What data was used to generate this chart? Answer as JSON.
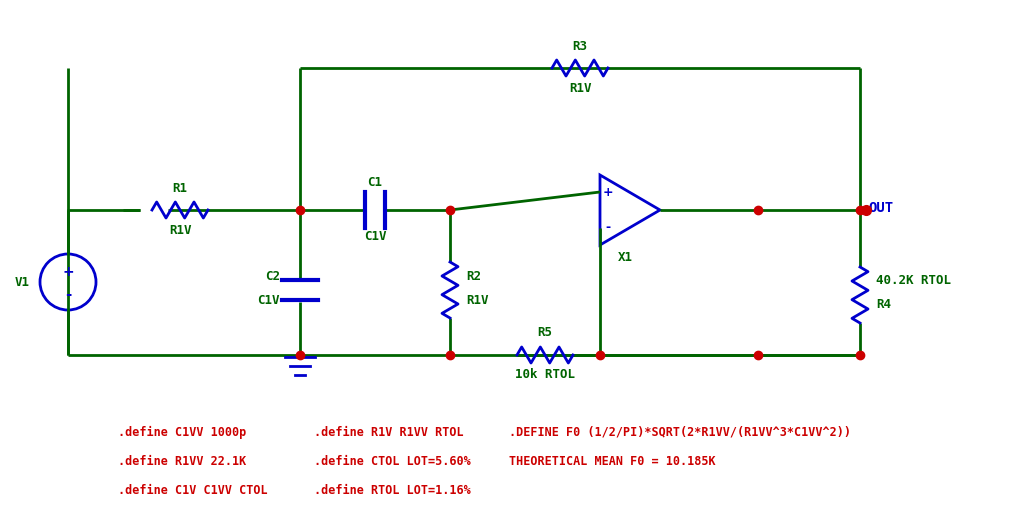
{
  "bg_color": "#ffffff",
  "wire_color": "#006400",
  "component_color": "#0000cd",
  "label_color_green": "#006400",
  "node_color": "#cc0000",
  "annotation_color": "#cc0000",
  "out_color": "#0000cd",
  "ann1": [
    0.115,
    0.8,
    ".define C1VV 1000p"
  ],
  "ann2": [
    0.115,
    0.855,
    ".define R1VV 22.1K"
  ],
  "ann3": [
    0.115,
    0.91,
    ".define C1V C1VV CTOL"
  ],
  "ann4": [
    0.305,
    0.8,
    ".define R1V R1VV RTOL"
  ],
  "ann5": [
    0.305,
    0.855,
    ".define CTOL LOT=5.60%"
  ],
  "ann6": [
    0.305,
    0.91,
    ".define RTOL LOT=1.16%"
  ],
  "ann7": [
    0.495,
    0.8,
    ".DEFINE F0 (1/2/PI)*SQRT(2*R1VV/(R1VV^3*C1VV^2))"
  ],
  "ann8": [
    0.495,
    0.855,
    "THEORETICAL MEAN F0 = 10.185K"
  ]
}
